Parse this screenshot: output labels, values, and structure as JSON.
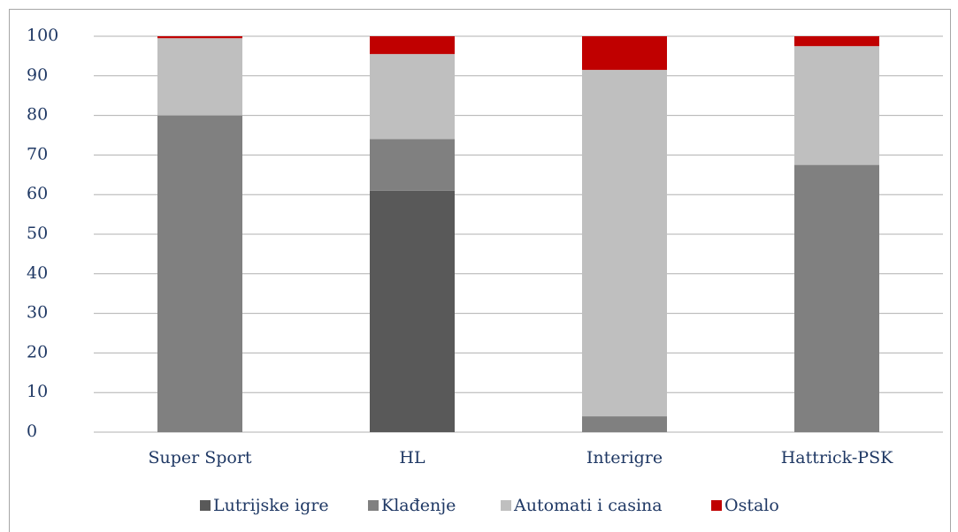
{
  "chart_data": {
    "type": "stacked_bar",
    "categories": [
      "Super Sport",
      "HL",
      "Interigre",
      "Hattrick-PSK"
    ],
    "series": [
      {
        "name": "Lutrijske igre",
        "color": "#595959",
        "values": [
          0,
          61,
          0,
          0
        ]
      },
      {
        "name": "Klađenje",
        "color": "#808080",
        "values": [
          80,
          13,
          4,
          67.5
        ]
      },
      {
        "name": "Automati i casina",
        "color": "#bfbfbf",
        "values": [
          19.5,
          21.5,
          87.5,
          30
        ]
      },
      {
        "name": "Ostalo",
        "color": "#c00000",
        "values": [
          0.5,
          4.5,
          8.5,
          2.5
        ]
      }
    ],
    "ylim": [
      0,
      100
    ],
    "yticks": [
      0,
      10,
      20,
      30,
      40,
      50,
      60,
      70,
      80,
      90,
      100
    ],
    "grid": true,
    "legend": "bottom"
  }
}
